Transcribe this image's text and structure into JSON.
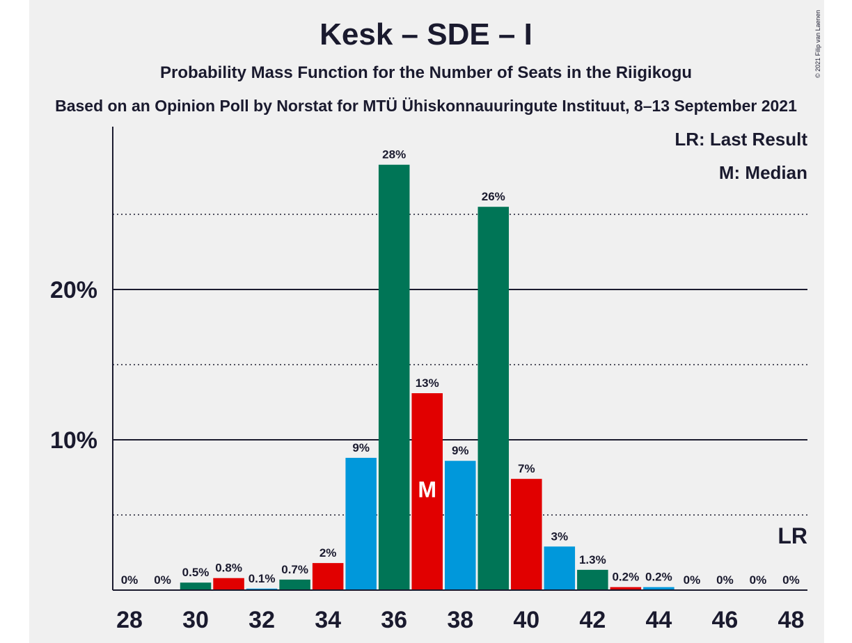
{
  "chart_data": {
    "type": "bar",
    "title": "Kesk – SDE – I",
    "subtitle": "Probability Mass Function for the Number of Seats in the Riigikogu",
    "caption": "Based on an Opinion Poll by Norstat for MTÜ Ühiskonnauuringute Instituut, 8–13 September 2021",
    "copyright": "© 2021 Filip van Laenen",
    "legend": [
      "LR: Last Result",
      "M: Median"
    ],
    "legend_position": "top-right",
    "xlabel": "",
    "ylabel": "",
    "ylim": [
      0,
      30
    ],
    "x_ticks": [
      "28",
      "30",
      "32",
      "34",
      "36",
      "38",
      "40",
      "42",
      "44",
      "46",
      "48"
    ],
    "y_ticks": [
      {
        "value": 10,
        "label": "10%"
      },
      {
        "value": 20,
        "label": "20%"
      }
    ],
    "dotted_gridlines": [
      5,
      15,
      25
    ],
    "categories": [
      28,
      29,
      30,
      31,
      32,
      33,
      34,
      35,
      36,
      37,
      38,
      39,
      40,
      41,
      42,
      43,
      44,
      45,
      46,
      47,
      48
    ],
    "values": [
      0,
      0,
      0.5,
      0.8,
      0.1,
      0.7,
      1.8,
      8.8,
      28.3,
      13.1,
      8.6,
      25.5,
      7.4,
      2.9,
      1.35,
      0.2,
      0.2,
      0,
      0,
      0,
      0
    ],
    "labels": [
      "0%",
      "0%",
      "0.5%",
      "0.8%",
      "0.1%",
      "0.7%",
      "2%",
      "9%",
      "28%",
      "13%",
      "9%",
      "26%",
      "7%",
      "3%",
      "1.3%",
      "0.2%",
      "0.2%",
      "0%",
      "0%",
      "0%",
      "0%"
    ],
    "colors": [
      "#0098db",
      "#007556",
      "#007556",
      "#e10000",
      "#0098db",
      "#007556",
      "#e10000",
      "#0098db",
      "#007556",
      "#e10000",
      "#0098db",
      "#007556",
      "#e10000",
      "#0098db",
      "#007556",
      "#e10000",
      "#0098db",
      "#007556",
      "#e10000",
      "#0098db",
      "#007556"
    ],
    "median": {
      "seat": 37,
      "marker": "M"
    },
    "last_result": {
      "seat": 48,
      "marker": "LR"
    },
    "grid": true
  },
  "style": {
    "plot_background": "#f0f0f0",
    "text_color": "#1a1a2e",
    "median_marker_color": "#ffffff"
  }
}
